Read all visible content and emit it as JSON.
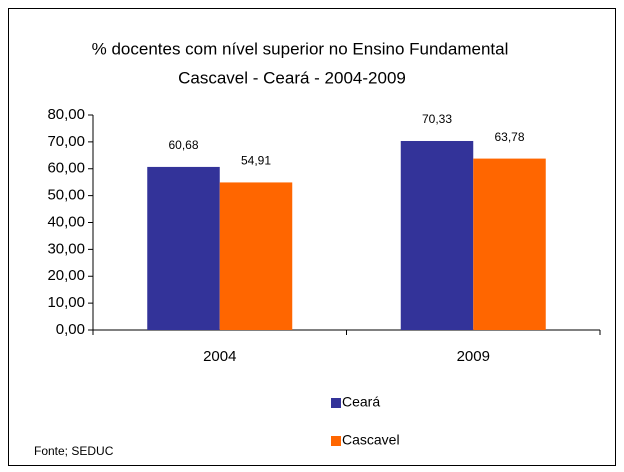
{
  "chart_data": {
    "type": "bar",
    "title": "% docentes com nível  superior no Ensino Fundamental",
    "subtitle": "Cascavel -  Ceará - 2004-2009",
    "categories": [
      "2004",
      "2009"
    ],
    "series": [
      {
        "name": "Ceará",
        "color": "#333399",
        "values": [
          60.68,
          70.33
        ],
        "value_labels": [
          "60,68",
          "70,33"
        ]
      },
      {
        "name": "Cascavel",
        "color": "#ff6600",
        "values": [
          54.91,
          63.78
        ],
        "value_labels": [
          "54,91",
          "63,78"
        ]
      }
    ],
    "ylim": [
      0,
      80
    ],
    "yticks": [
      {
        "value": 0,
        "label": "0,00"
      },
      {
        "value": 10,
        "label": "10,00"
      },
      {
        "value": 20,
        "label": "20,00"
      },
      {
        "value": 30,
        "label": "30,00"
      },
      {
        "value": 40,
        "label": "40,00"
      },
      {
        "value": 50,
        "label": "50,00"
      },
      {
        "value": 60,
        "label": "60,00"
      },
      {
        "value": 70,
        "label": "70,00"
      },
      {
        "value": 80,
        "label": "80,00"
      }
    ],
    "legend": "bottom",
    "source": "Fonte; SEDUC"
  }
}
